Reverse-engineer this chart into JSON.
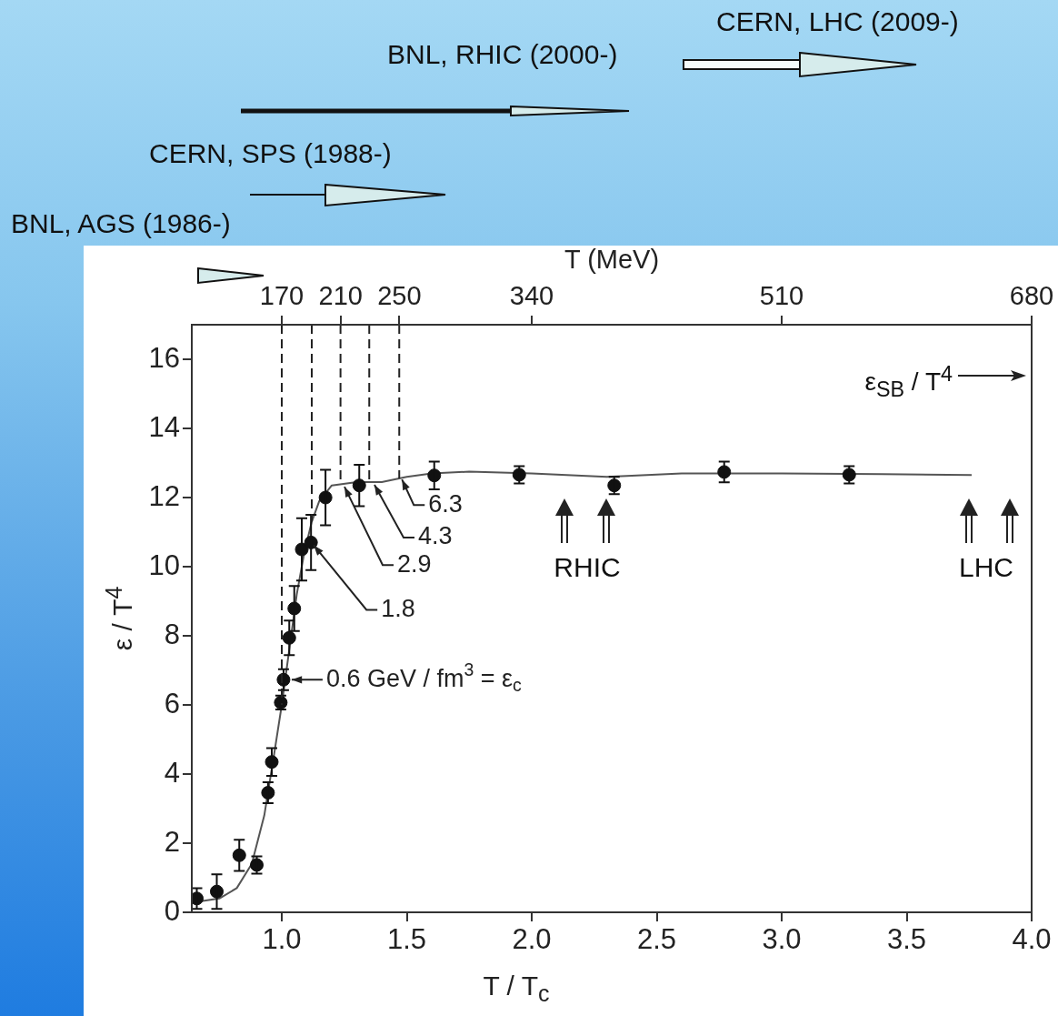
{
  "chart_data": {
    "type": "scatter",
    "xlabel": "T / T$_{c}$",
    "ylabel": "ε / T$^{4}$",
    "x2label": "T (MeV)",
    "xlim": [
      0.64,
      4.0
    ],
    "xticks": [
      {
        "value": 1,
        "label": "1.0"
      },
      1.5,
      {
        "value": 2,
        "label": "2.0"
      },
      2.5,
      {
        "value": 3,
        "label": "3.0"
      },
      3.5,
      {
        "value": 4,
        "label": "4.0"
      }
    ],
    "ylim": [
      0,
      17
    ],
    "yticks": [
      0,
      2,
      4,
      6,
      8,
      10,
      12,
      14,
      16
    ],
    "x2lim": [
      108.8,
      680
    ],
    "x2ticks": [
      170,
      210,
      250,
      340,
      510,
      680
    ],
    "series": [
      {
        "type": "scatter",
        "marker": "circle",
        "color": "#111111",
        "x": [
          0.66,
          0.74,
          0.83,
          0.9,
          0.945,
          0.96,
          0.996,
          1.007,
          1.03,
          1.05,
          1.08,
          1.117,
          1.175,
          1.31,
          1.61,
          1.95,
          2.33,
          2.77,
          3.27
        ],
        "values": [
          0.4,
          0.6,
          1.65,
          1.37,
          3.46,
          4.35,
          6.07,
          6.73,
          7.94,
          8.79,
          10.5,
          10.7,
          12.0,
          12.35,
          12.64,
          12.66,
          12.35,
          12.74,
          12.66
        ],
        "errors": [
          0.3,
          0.5,
          0.45,
          0.25,
          0.3,
          0.4,
          0.2,
          0.3,
          0.5,
          0.65,
          0.9,
          0.8,
          0.8,
          0.6,
          0.4,
          0.25,
          0.25,
          0.3,
          0.25
        ]
      },
      {
        "type": "line",
        "marker": "none",
        "color": "#555555",
        "x": [
          0.66,
          0.75,
          0.82,
          0.88,
          0.93,
          0.97,
          1.0,
          1.03,
          1.06,
          1.09,
          1.12,
          1.15,
          1.2,
          1.3,
          1.4,
          1.5,
          1.6,
          1.75,
          2.0,
          2.3,
          2.6,
          3.0,
          3.4,
          3.76
        ],
        "values": [
          0.3,
          0.4,
          0.7,
          1.4,
          2.8,
          4.6,
          6.0,
          7.6,
          9.2,
          10.4,
          11.3,
          11.9,
          12.35,
          12.45,
          12.45,
          12.6,
          12.7,
          12.75,
          12.7,
          12.6,
          12.7,
          12.7,
          12.68,
          12.65
        ]
      }
    ],
    "ref_lines": [
      {
        "axis": "x",
        "value": 1.0,
        "line_style": "dashed",
        "color": "#222222"
      },
      {
        "axis": "x",
        "value": 1.12,
        "line_style": "dashed",
        "color": "#222222"
      },
      {
        "axis": "x",
        "value": 1.235,
        "line_style": "dashed",
        "color": "#222222"
      },
      {
        "axis": "x",
        "value": 1.35,
        "line_style": "dashed",
        "color": "#222222"
      },
      {
        "axis": "x",
        "value": 1.47,
        "line_style": "dashed",
        "color": "#222222"
      }
    ],
    "annotations": [
      "CERN, LHC (2009-)",
      "BNL, RHIC (2000-)",
      "CERN, SPS (1988-)",
      "BNL, AGS (1986-)",
      {
        "text": "6.3",
        "x": 1.47,
        "y": 12.6
      },
      {
        "text": "4.3",
        "x": 1.36,
        "y": 12.45
      },
      {
        "text": "2.9",
        "x": 1.24,
        "y": 12.39
      },
      {
        "text": "1.8",
        "x": 1.117,
        "y": 10.7
      },
      {
        "text": "0.6 GeV / fm$^{3}$ = ε$_{c}$",
        "x": 1.007,
        "y": 6.73
      },
      "ε$_{SB}$ / T$^{4}$",
      "RHIC",
      "LHC"
    ]
  }
}
